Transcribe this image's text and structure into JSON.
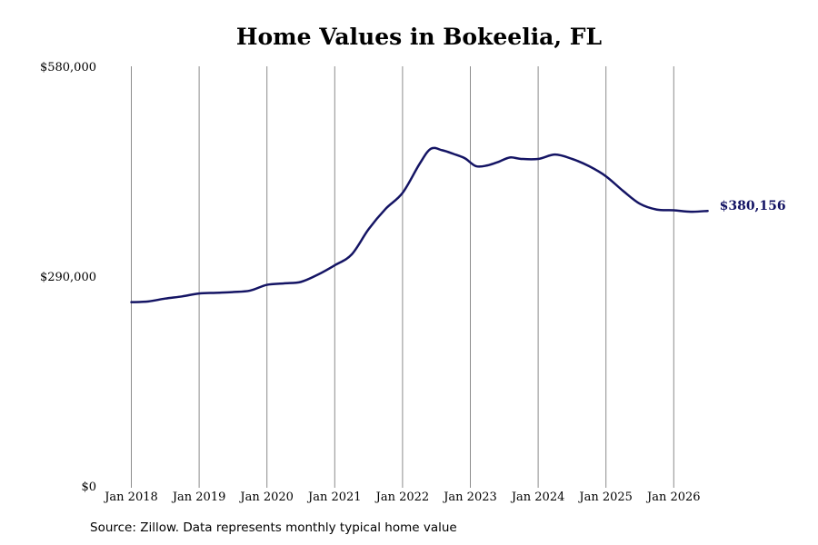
{
  "chart_data": {
    "type": "line",
    "title": "Home Values in Bokeelia, FL",
    "xlabel": "",
    "ylabel": "",
    "x_ticks": [
      "Jan 2018",
      "Jan 2019",
      "Jan 2020",
      "Jan 2021",
      "Jan 2022",
      "Jan 2023",
      "Jan 2024",
      "Jan 2025",
      "Jan 2026"
    ],
    "y_ticks": [
      "$0",
      "$290,000",
      "$580,000"
    ],
    "ylim": [
      0,
      580000
    ],
    "grid": "vertical",
    "line_color": "#141464",
    "end_label": "$380,156",
    "series": [
      {
        "x": [
          "2018-01",
          "2018-04",
          "2018-07",
          "2018-10",
          "2019-01",
          "2019-04",
          "2019-07",
          "2019-10",
          "2020-01",
          "2020-04",
          "2020-07",
          "2020-10",
          "2021-01",
          "2021-04",
          "2021-07",
          "2021-10",
          "2022-01",
          "2022-04",
          "2022-06",
          "2022-08",
          "2022-10",
          "2022-12",
          "2023-02",
          "2023-04",
          "2023-06",
          "2023-08",
          "2023-10",
          "2024-01",
          "2024-04",
          "2024-07",
          "2024-10",
          "2025-01",
          "2025-04",
          "2025-07",
          "2025-10",
          "2026-01",
          "2026-04",
          "2026-07"
        ],
        "values": [
          254000,
          255000,
          259000,
          262000,
          266000,
          267000,
          268000,
          270000,
          278000,
          280000,
          282000,
          292000,
          305000,
          320000,
          355000,
          383000,
          405000,
          445000,
          466000,
          464000,
          459000,
          453000,
          442000,
          443000,
          448000,
          454000,
          452000,
          452000,
          458000,
          452000,
          442000,
          428000,
          408000,
          390000,
          382000,
          381000,
          379000,
          380156
        ]
      }
    ]
  },
  "source_note": "Source: Zillow. Data represents monthly typical home value"
}
